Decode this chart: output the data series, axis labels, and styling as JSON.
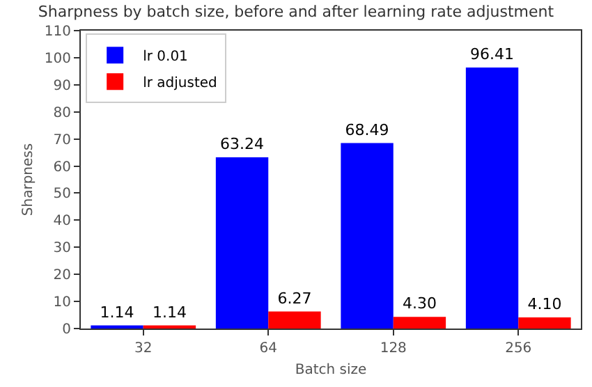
{
  "chart_data": {
    "type": "bar",
    "title": "Sharpness by batch size, before and after learning rate adjustment",
    "xlabel": "Batch size",
    "ylabel": "Sharpness",
    "categories": [
      "32",
      "64",
      "128",
      "256"
    ],
    "series": [
      {
        "name": "lr 0.01",
        "color": "#0000ff",
        "values": [
          1.14,
          63.24,
          68.49,
          96.41
        ],
        "value_labels": [
          "1.14",
          "63.24",
          "68.49",
          "96.41"
        ]
      },
      {
        "name": "lr adjusted",
        "color": "#ff0000",
        "values": [
          1.14,
          6.27,
          4.3,
          4.1
        ],
        "value_labels": [
          "1.14",
          "6.27",
          "4.30",
          "4.10"
        ]
      }
    ],
    "ylim": [
      0,
      110
    ],
    "yticks": [
      0,
      10,
      20,
      30,
      40,
      50,
      60,
      70,
      80,
      90,
      100,
      110
    ],
    "grid": false,
    "legend": "top left"
  }
}
